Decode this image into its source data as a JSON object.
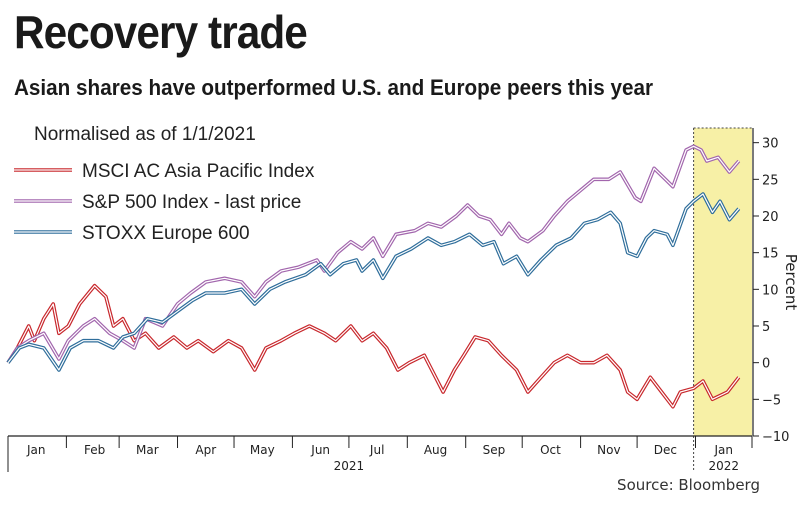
{
  "header": {
    "title": "Recovery trade",
    "subtitle": "Asian shares have outperformed U.S. and Europe peers this year"
  },
  "footer": {
    "source": "Source: Bloomberg"
  },
  "chart_data": {
    "type": "line",
    "note": "Normalised as of 1/1/2021",
    "ylabel": "Percent",
    "ylim": [
      -10,
      32
    ],
    "yticks": [
      30,
      25,
      20,
      15,
      10,
      5,
      0,
      -5,
      -10
    ],
    "xlim": [
      "2021-01-01",
      "2022-01-31"
    ],
    "x_month_labels": [
      "Jan",
      "Feb",
      "Mar",
      "Apr",
      "May",
      "Jun",
      "Jul",
      "Aug",
      "Sep",
      "Oct",
      "Nov",
      "Dec",
      "Jan"
    ],
    "x_year_labels": [
      "2021",
      "2022"
    ],
    "highlight_range": [
      "2021-12-31",
      "2022-01-31"
    ],
    "highlight_color": "#f7f0a6",
    "grid": false,
    "legend_position": "top-left",
    "series": [
      {
        "name": "MSCI AC Asia Pacific Index",
        "color": "#c8282d",
        "points": [
          [
            "2021-01-01",
            0
          ],
          [
            "2021-01-06",
            2
          ],
          [
            "2021-01-12",
            5
          ],
          [
            "2021-01-15",
            3
          ],
          [
            "2021-01-20",
            6
          ],
          [
            "2021-01-25",
            8
          ],
          [
            "2021-01-28",
            4
          ],
          [
            "2021-02-02",
            5
          ],
          [
            "2021-02-08",
            8
          ],
          [
            "2021-02-16",
            10.5
          ],
          [
            "2021-02-22",
            9
          ],
          [
            "2021-02-26",
            5
          ],
          [
            "2021-03-03",
            6
          ],
          [
            "2021-03-09",
            3
          ],
          [
            "2021-03-15",
            4
          ],
          [
            "2021-03-22",
            2
          ],
          [
            "2021-03-30",
            3.5
          ],
          [
            "2021-04-06",
            2
          ],
          [
            "2021-04-12",
            3
          ],
          [
            "2021-04-20",
            1.5
          ],
          [
            "2021-04-28",
            3
          ],
          [
            "2021-05-05",
            2
          ],
          [
            "2021-05-12",
            -1
          ],
          [
            "2021-05-18",
            2
          ],
          [
            "2021-05-26",
            3
          ],
          [
            "2021-06-02",
            4
          ],
          [
            "2021-06-10",
            5
          ],
          [
            "2021-06-18",
            4
          ],
          [
            "2021-06-24",
            3
          ],
          [
            "2021-07-02",
            5
          ],
          [
            "2021-07-08",
            3
          ],
          [
            "2021-07-14",
            4
          ],
          [
            "2021-07-21",
            2
          ],
          [
            "2021-07-27",
            -1
          ],
          [
            "2021-08-02",
            0
          ],
          [
            "2021-08-10",
            1
          ],
          [
            "2021-08-16",
            -2
          ],
          [
            "2021-08-20",
            -4
          ],
          [
            "2021-08-26",
            -1
          ],
          [
            "2021-08-31",
            1
          ],
          [
            "2021-09-06",
            3.5
          ],
          [
            "2021-09-13",
            3
          ],
          [
            "2021-09-20",
            1
          ],
          [
            "2021-09-28",
            -1
          ],
          [
            "2021-10-04",
            -4
          ],
          [
            "2021-10-11",
            -2
          ],
          [
            "2021-10-18",
            0
          ],
          [
            "2021-10-25",
            1
          ],
          [
            "2021-11-01",
            0
          ],
          [
            "2021-11-08",
            0
          ],
          [
            "2021-11-15",
            1
          ],
          [
            "2021-11-22",
            -1
          ],
          [
            "2021-11-26",
            -4
          ],
          [
            "2021-12-01",
            -5
          ],
          [
            "2021-12-08",
            -2
          ],
          [
            "2021-12-14",
            -4
          ],
          [
            "2021-12-20",
            -6
          ],
          [
            "2021-12-24",
            -4
          ],
          [
            "2021-12-31",
            -3.5
          ],
          [
            "2022-01-05",
            -2.5
          ],
          [
            "2022-01-10",
            -5
          ],
          [
            "2022-01-18",
            -4
          ],
          [
            "2022-01-24",
            -2
          ]
        ]
      },
      {
        "name": "S&P 500 Index - last price",
        "color": "#a266ad",
        "points": [
          [
            "2021-01-01",
            0
          ],
          [
            "2021-01-06",
            2
          ],
          [
            "2021-01-12",
            3
          ],
          [
            "2021-01-20",
            4
          ],
          [
            "2021-01-28",
            0.5
          ],
          [
            "2021-02-02",
            3
          ],
          [
            "2021-02-10",
            5
          ],
          [
            "2021-02-16",
            6
          ],
          [
            "2021-02-24",
            4
          ],
          [
            "2021-03-03",
            3
          ],
          [
            "2021-03-09",
            2
          ],
          [
            "2021-03-15",
            6
          ],
          [
            "2021-03-24",
            5
          ],
          [
            "2021-04-01",
            8
          ],
          [
            "2021-04-08",
            9.5
          ],
          [
            "2021-04-16",
            11
          ],
          [
            "2021-04-26",
            11.5
          ],
          [
            "2021-05-05",
            11
          ],
          [
            "2021-05-12",
            9
          ],
          [
            "2021-05-18",
            11
          ],
          [
            "2021-05-26",
            12.5
          ],
          [
            "2021-06-04",
            13
          ],
          [
            "2021-06-14",
            14
          ],
          [
            "2021-06-18",
            12.5
          ],
          [
            "2021-06-25",
            15
          ],
          [
            "2021-07-02",
            16.5
          ],
          [
            "2021-07-08",
            15.5
          ],
          [
            "2021-07-14",
            17
          ],
          [
            "2021-07-19",
            14.5
          ],
          [
            "2021-07-26",
            17.5
          ],
          [
            "2021-08-05",
            18
          ],
          [
            "2021-08-12",
            19
          ],
          [
            "2021-08-19",
            18.5
          ],
          [
            "2021-08-27",
            20
          ],
          [
            "2021-09-02",
            21.5
          ],
          [
            "2021-09-08",
            20
          ],
          [
            "2021-09-14",
            19.5
          ],
          [
            "2021-09-20",
            17.5
          ],
          [
            "2021-09-24",
            19
          ],
          [
            "2021-09-30",
            17
          ],
          [
            "2021-10-04",
            16.5
          ],
          [
            "2021-10-12",
            18
          ],
          [
            "2021-10-18",
            20
          ],
          [
            "2021-10-25",
            22
          ],
          [
            "2021-11-01",
            23.5
          ],
          [
            "2021-11-08",
            25
          ],
          [
            "2021-11-16",
            25
          ],
          [
            "2021-11-22",
            26
          ],
          [
            "2021-11-30",
            22.5
          ],
          [
            "2021-12-03",
            22
          ],
          [
            "2021-12-10",
            26.5
          ],
          [
            "2021-12-16",
            25
          ],
          [
            "2021-12-20",
            24
          ],
          [
            "2021-12-27",
            29
          ],
          [
            "2021-12-31",
            29.5
          ],
          [
            "2022-01-04",
            29
          ],
          [
            "2022-01-07",
            27.5
          ],
          [
            "2022-01-13",
            28
          ],
          [
            "2022-01-19",
            26
          ],
          [
            "2022-01-24",
            27.5
          ]
        ]
      },
      {
        "name": "STOXX Europe 600",
        "color": "#2f6e9b",
        "points": [
          [
            "2021-01-01",
            0
          ],
          [
            "2021-01-07",
            2
          ],
          [
            "2021-01-12",
            2.5
          ],
          [
            "2021-01-20",
            2
          ],
          [
            "2021-01-28",
            -1
          ],
          [
            "2021-02-03",
            2
          ],
          [
            "2021-02-10",
            3
          ],
          [
            "2021-02-18",
            3
          ],
          [
            "2021-02-26",
            2
          ],
          [
            "2021-03-03",
            3.5
          ],
          [
            "2021-03-09",
            4
          ],
          [
            "2021-03-16",
            6
          ],
          [
            "2021-03-24",
            5.5
          ],
          [
            "2021-04-01",
            7
          ],
          [
            "2021-04-09",
            8.5
          ],
          [
            "2021-04-16",
            9.5
          ],
          [
            "2021-04-26",
            9.5
          ],
          [
            "2021-05-05",
            10
          ],
          [
            "2021-05-12",
            8
          ],
          [
            "2021-05-20",
            10
          ],
          [
            "2021-05-28",
            11
          ],
          [
            "2021-06-08",
            12
          ],
          [
            "2021-06-16",
            13.5
          ],
          [
            "2021-06-21",
            12
          ],
          [
            "2021-06-28",
            13.5
          ],
          [
            "2021-07-05",
            14
          ],
          [
            "2021-07-08",
            12.5
          ],
          [
            "2021-07-14",
            14
          ],
          [
            "2021-07-19",
            11.5
          ],
          [
            "2021-07-26",
            14.5
          ],
          [
            "2021-08-03",
            15.5
          ],
          [
            "2021-08-12",
            17
          ],
          [
            "2021-08-19",
            16
          ],
          [
            "2021-08-26",
            16.5
          ],
          [
            "2021-09-03",
            17.5
          ],
          [
            "2021-09-10",
            16
          ],
          [
            "2021-09-16",
            16.5
          ],
          [
            "2021-09-21",
            13.5
          ],
          [
            "2021-09-28",
            14.5
          ],
          [
            "2021-10-04",
            12
          ],
          [
            "2021-10-11",
            14
          ],
          [
            "2021-10-19",
            16
          ],
          [
            "2021-10-27",
            17
          ],
          [
            "2021-11-03",
            19
          ],
          [
            "2021-11-10",
            19.5
          ],
          [
            "2021-11-17",
            20.5
          ],
          [
            "2021-11-22",
            19
          ],
          [
            "2021-11-26",
            15
          ],
          [
            "2021-12-01",
            14.5
          ],
          [
            "2021-12-06",
            17
          ],
          [
            "2021-12-10",
            18
          ],
          [
            "2021-12-17",
            17.5
          ],
          [
            "2021-12-20",
            16
          ],
          [
            "2021-12-27",
            21
          ],
          [
            "2021-12-31",
            22
          ],
          [
            "2022-01-05",
            23
          ],
          [
            "2022-01-10",
            20.5
          ],
          [
            "2022-01-14",
            22
          ],
          [
            "2022-01-19",
            19.5
          ],
          [
            "2022-01-24",
            21
          ]
        ]
      }
    ]
  }
}
